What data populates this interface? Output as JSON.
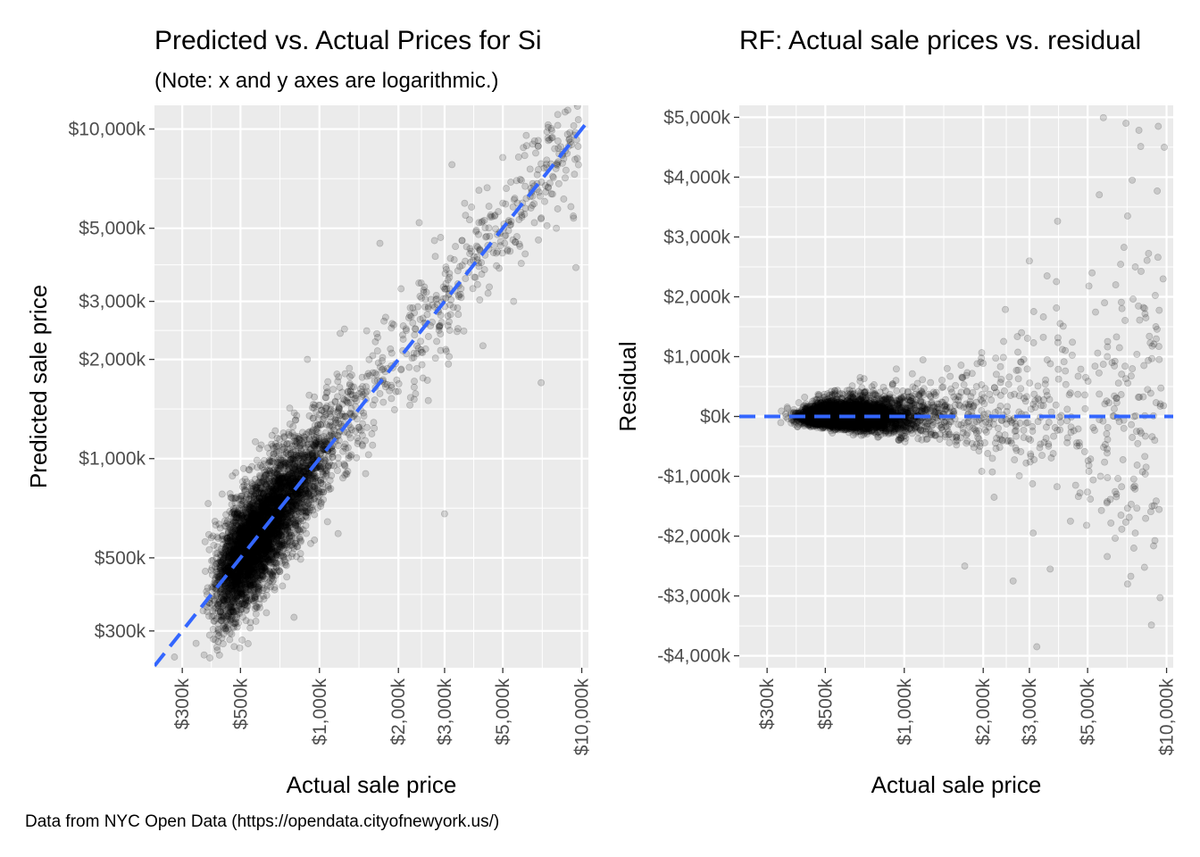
{
  "caption": "Data from NYC Open Data (https://opendata.cityofnewyork.us/)",
  "colors": {
    "panel": "#ebebeb",
    "grid": "#ffffff",
    "points": "#000000",
    "reference_line": "#3366ff",
    "tick_text": "#4d4d4d"
  },
  "chart_data": [
    {
      "type": "scatter",
      "title": "Predicted vs. Actual Prices for Si",
      "subtitle": "(Note: x and y axes are logarithmic.)",
      "xlabel": "Actual sale price",
      "ylabel": "Predicted sale price",
      "x_scale": "log10",
      "y_scale": "log10",
      "xlim": [
        235000,
        10600000
      ],
      "ylim": [
        232000,
        11800000
      ],
      "x_ticks": [
        300000,
        500000,
        1000000,
        2000000,
        3000000,
        5000000,
        10000000
      ],
      "x_tick_labels": [
        "$300k",
        "$500k",
        "$1,000k",
        "$2,000k",
        "$3,000k",
        "$5,000k",
        "$10,000k"
      ],
      "y_ticks": [
        300000,
        500000,
        1000000,
        2000000,
        3000000,
        5000000,
        10000000
      ],
      "y_tick_labels": [
        "$300k",
        "$500k",
        "$1,000k",
        "$2,000k",
        "$3,000k",
        "$5,000k",
        "$10,000k"
      ],
      "reference_line": {
        "type": "identity",
        "style": "dashed",
        "color": "#3366ff"
      },
      "grid": true,
      "point_alpha": 0.15,
      "n_points": 5000,
      "points": [
        [
          3000000,
          680000
        ],
        [
          7000000,
          1700000
        ],
        [
          5500000,
          3000000
        ],
        [
          1700000,
          4500000
        ],
        [
          700000,
          600000
        ],
        [
          800000,
          330000
        ],
        [
          3200000,
          7800000
        ],
        [
          9500000,
          3800000
        ],
        [
          2400000,
          5200000
        ],
        [
          900000,
          2000000
        ],
        [
          6500000,
          9000000
        ],
        [
          4200000,
          2200000
        ],
        [
          280000,
          250000
        ],
        [
          600000,
          1100000
        ],
        [
          1200000,
          2400000
        ],
        [
          8000000,
          5000000
        ],
        [
          2600000,
          1500000
        ],
        [
          1500000,
          900000
        ],
        [
          3800000,
          5800000
        ],
        [
          5000000,
          8200000
        ]
      ]
    },
    {
      "type": "scatter",
      "title": "RF: Actual sale prices vs. residual",
      "xlabel": "Actual sale price",
      "ylabel": "Residual",
      "x_scale": "log10",
      "y_scale": "linear",
      "xlim": [
        235000,
        10600000
      ],
      "ylim": [
        -4200000,
        5200000
      ],
      "x_ticks": [
        300000,
        500000,
        1000000,
        2000000,
        3000000,
        5000000,
        10000000
      ],
      "x_tick_labels": [
        "$300k",
        "$500k",
        "$1,000k",
        "$2,000k",
        "$3,000k",
        "$5,000k",
        "$10,000k"
      ],
      "y_ticks": [
        -4000000,
        -3000000,
        -2000000,
        -1000000,
        0,
        1000000,
        2000000,
        3000000,
        4000000,
        5000000
      ],
      "y_tick_labels": [
        "-$4,000k",
        "-$3,000k",
        "-$2,000k",
        "-$1,000k",
        "$0k",
        "$1,000k",
        "$2,000k",
        "$3,000k",
        "$4,000k",
        "$5,000k"
      ],
      "reference_line": {
        "type": "horizontal",
        "y": 0,
        "style": "dashed",
        "color": "#3366ff"
      },
      "grid": true,
      "point_alpha": 0.15,
      "n_points": 5000,
      "points": [
        [
          7000000,
          4900000
        ],
        [
          9300000,
          4850000
        ],
        [
          9800000,
          4500000
        ],
        [
          7400000,
          3950000
        ],
        [
          7100000,
          3350000
        ],
        [
          3000000,
          2600000
        ],
        [
          7600000,
          2500000
        ],
        [
          9700000,
          2300000
        ],
        [
          5200000,
          2400000
        ],
        [
          1700000,
          -2500000
        ],
        [
          2600000,
          -2750000
        ],
        [
          3600000,
          -2550000
        ],
        [
          3200000,
          -3850000
        ],
        [
          7100000,
          -2800000
        ],
        [
          7500000,
          -2200000
        ],
        [
          7600000,
          -1950000
        ],
        [
          3100000,
          -1950000
        ],
        [
          4300000,
          -1750000
        ],
        [
          6700000,
          -1650000
        ],
        [
          8800000,
          -1500000
        ],
        [
          5800000,
          1900000
        ],
        [
          9100000,
          1500000
        ],
        [
          6400000,
          2200000
        ],
        [
          8200000,
          850000
        ],
        [
          4500000,
          -1150000
        ],
        [
          5600000,
          -1000000
        ],
        [
          2800000,
          1400000
        ],
        [
          2200000,
          -1350000
        ]
      ]
    }
  ]
}
